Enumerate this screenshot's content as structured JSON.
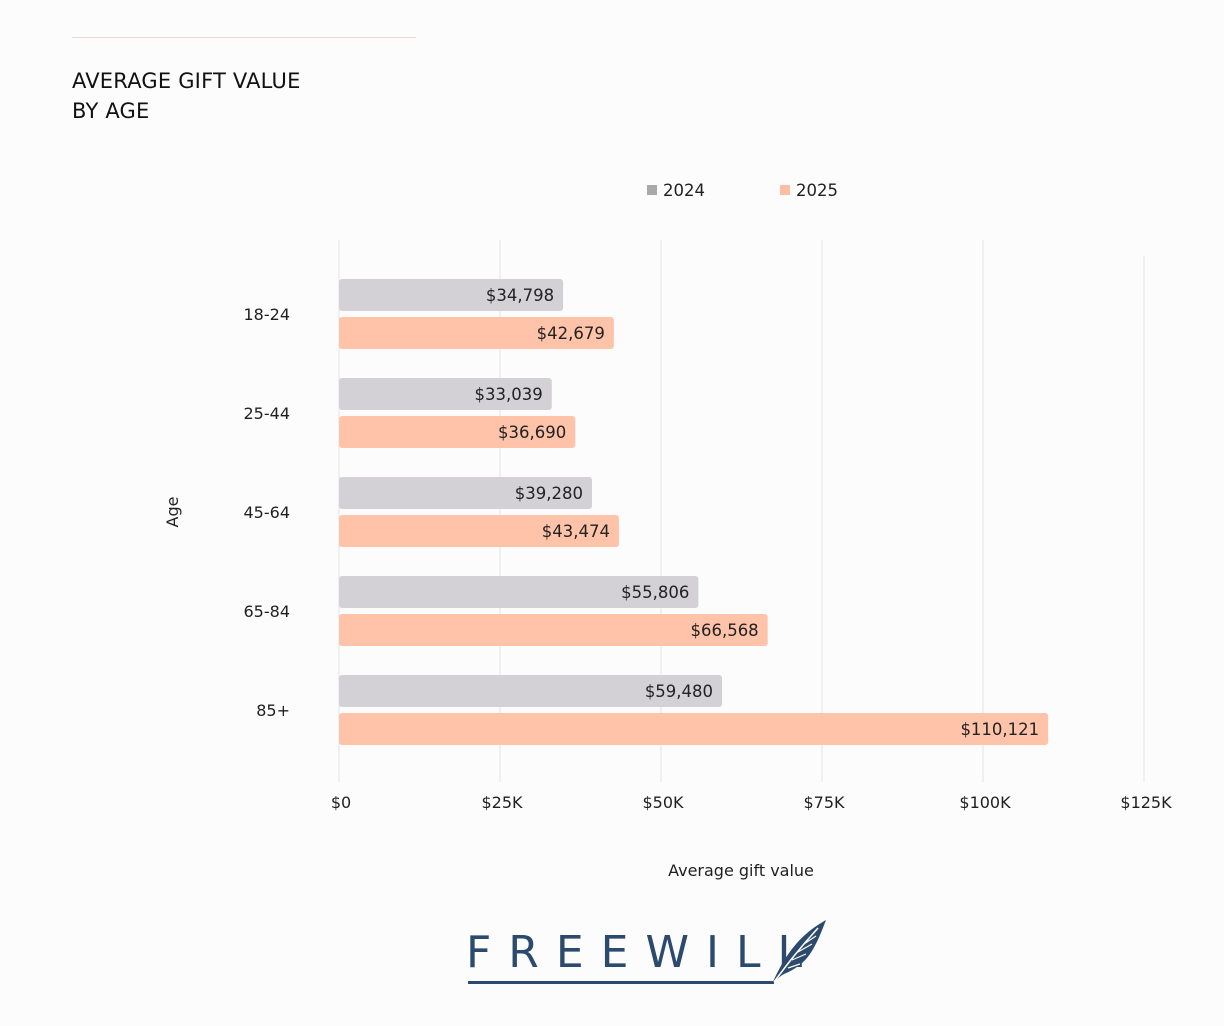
{
  "chart_data": {
    "type": "bar",
    "orientation": "horizontal",
    "title": "AVERAGE GIFT VALUE BY AGE",
    "title_lines": [
      "AVERAGE GIFT VALUE",
      "BY AGE"
    ],
    "categories": [
      "18-24",
      "25-44",
      "45-64",
      "65-84",
      "85+"
    ],
    "series": [
      {
        "name": "2024",
        "color": "#d3d1d6",
        "legend_color": "#a9a8ab",
        "values": [
          34798,
          33039,
          39280,
          55806,
          59480
        ],
        "labels": [
          "$34,798",
          "$33,039",
          "$39,280",
          "$55,806",
          "$59,480"
        ]
      },
      {
        "name": "2025",
        "color": "#fec3a8",
        "legend_color": "#fdbea1",
        "values": [
          42679,
          36690,
          43474,
          66568,
          110121
        ],
        "labels": [
          "$42,679",
          "$36,690",
          "$43,474",
          "$66,568",
          "$110,121"
        ]
      }
    ],
    "xlim": [
      0,
      125000
    ],
    "xticks": [
      0,
      25000,
      50000,
      75000,
      100000,
      125000
    ],
    "xtick_labels": [
      "$0",
      "$25K",
      "$50K",
      "$75K",
      "$100K",
      "$125K"
    ],
    "xlabel": "Average gift value",
    "ylabel": "Age",
    "grid": "vertical",
    "legend_position": "top"
  },
  "brand": {
    "name": "FREEWILL",
    "color": "#2b4a6d"
  }
}
